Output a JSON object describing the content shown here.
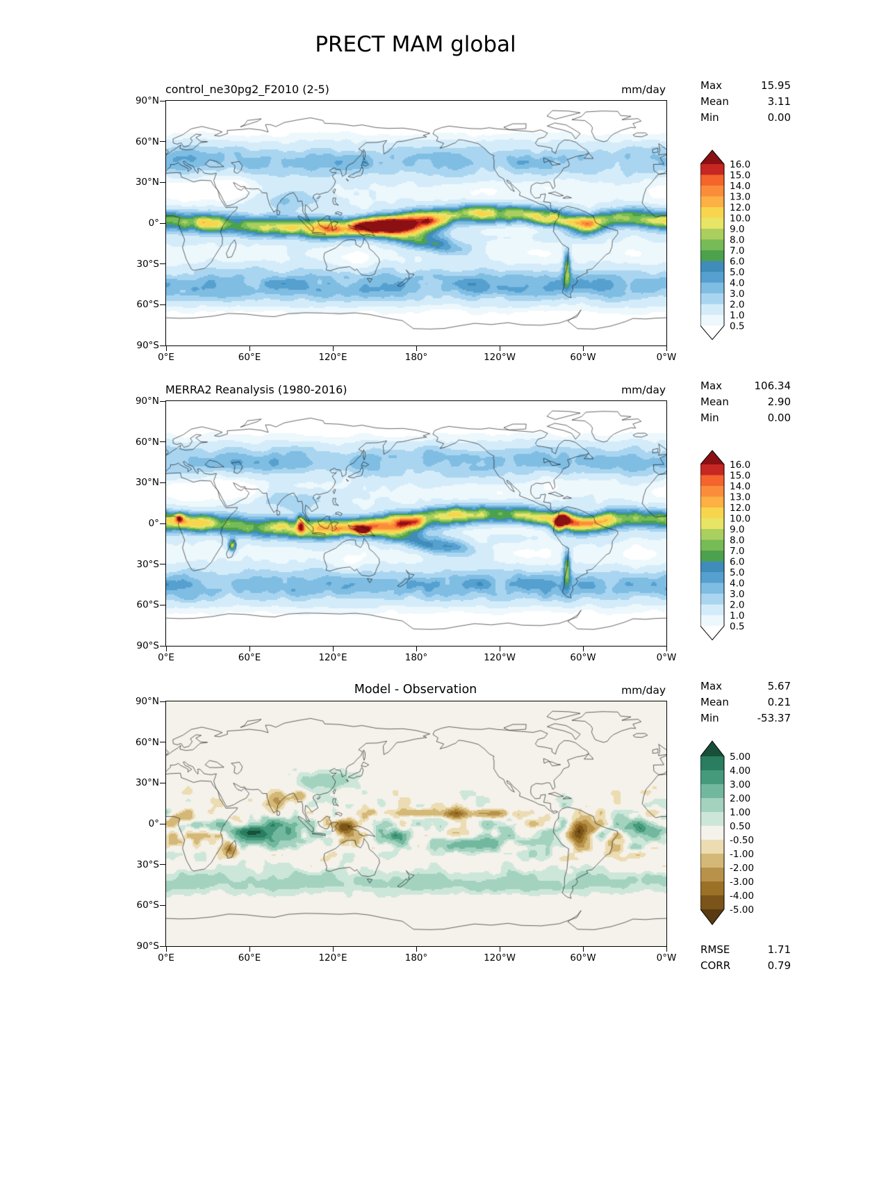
{
  "title": "PRECT MAM global",
  "labels": {
    "max": "Max",
    "mean": "Mean",
    "min": "Min",
    "rmse": "RMSE",
    "corr": "CORR"
  },
  "chart_data": {
    "type": "heatmap",
    "subtype": "global_latlon_filled_contour_maps",
    "projection": "equirectangular",
    "lon_range": [
      0,
      360
    ],
    "lat_range": [
      -90,
      90
    ],
    "axes": {
      "lat_ticks": [
        "90°N",
        "60°N",
        "30°N",
        "0°",
        "30°S",
        "60°S",
        "90°S"
      ],
      "lon_ticks": [
        "0°E",
        "60°E",
        "120°E",
        "180°",
        "120°W",
        "60°W",
        "0°W"
      ]
    },
    "panels": [
      {
        "field": "model",
        "title": "control_ne30pg2_F2010 (2-5)",
        "units": "mm/day",
        "colorbar": "precip",
        "stats": {
          "max": "15.95",
          "mean": "3.11",
          "min": "0.00"
        }
      },
      {
        "field": "obs",
        "title": "MERRA2 Reanalysis (1980-2016)",
        "units": "mm/day",
        "colorbar": "precip",
        "stats": {
          "max": "106.34",
          "mean": "2.90",
          "min": "0.00"
        }
      },
      {
        "field": "diff",
        "title": "Model - Observation",
        "units": "mm/day",
        "colorbar": "diff",
        "stats": {
          "max": "5.67",
          "mean": "0.21",
          "min": "-53.37"
        },
        "metrics": {
          "rmse": "1.71",
          "corr": "0.79"
        }
      }
    ],
    "colorbars": {
      "precip": {
        "tick_labels": [
          "16.0",
          "15.0",
          "14.0",
          "13.0",
          "12.0",
          "10.0",
          "9.0",
          "8.0",
          "7.0",
          "6.0",
          "5.0",
          "4.0",
          "3.0",
          "2.0",
          "1.0",
          "0.5"
        ],
        "levels": [
          0.5,
          1,
          2,
          3,
          4,
          5,
          6,
          7,
          8,
          9,
          10,
          12,
          13,
          14,
          15,
          16
        ],
        "colors": [
          "#ffffff",
          "#edf8fd",
          "#d4ecf9",
          "#aad5f0",
          "#7fbde3",
          "#56a0d0",
          "#3f8cba",
          "#4ca24c",
          "#77bb57",
          "#aacf5f",
          "#e8e465",
          "#f7d64e",
          "#fdb043",
          "#fb8d3a",
          "#f4642c",
          "#c62722",
          "#8a1014"
        ]
      },
      "diff": {
        "tick_labels": [
          "5.00",
          "4.00",
          "3.00",
          "2.00",
          "1.00",
          "0.50",
          "-0.50",
          "-1.00",
          "-2.00",
          "-3.00",
          "-4.00",
          "-5.00"
        ],
        "levels": [
          -5,
          -4,
          -3,
          -2,
          -1,
          -0.5,
          0.5,
          1,
          2,
          3,
          4,
          5
        ],
        "colors": [
          "#5a3a10",
          "#7a5418",
          "#9a7126",
          "#b8924a",
          "#d4b878",
          "#ecdcb2",
          "#f4f2ea",
          "#cde6da",
          "#a3d2bf",
          "#71b89e",
          "#459a7c",
          "#2a7d5f",
          "#174f39"
        ]
      }
    }
  }
}
